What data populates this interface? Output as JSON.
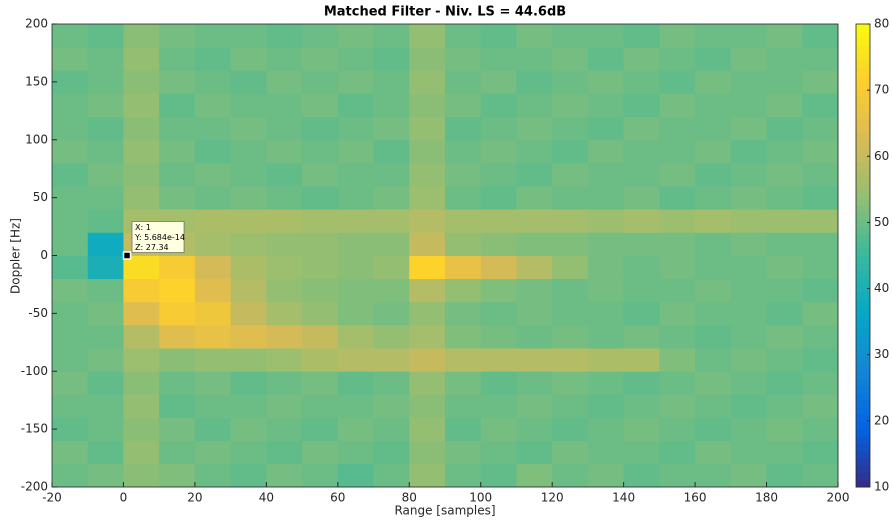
{
  "chart_data": {
    "type": "heatmap",
    "title": "Matched Filter - Niv. LS = 44.6dB",
    "x_label": "Range [samples]",
    "y_label": "Doppler [Hz]",
    "xlim": [
      -20,
      200
    ],
    "ylim": [
      -200,
      200
    ],
    "xticks": [
      -20,
      0,
      20,
      40,
      60,
      80,
      100,
      120,
      140,
      160,
      180,
      200
    ],
    "yticks": [
      -200,
      -150,
      -100,
      -50,
      0,
      50,
      100,
      150,
      200
    ],
    "clim": [
      10,
      80
    ],
    "cticks": [
      10,
      20,
      30,
      40,
      50,
      60,
      70,
      80
    ],
    "colormap": [
      "#352a87",
      "#0363e1",
      "#1485d4",
      "#06a7c6",
      "#38b99e",
      "#92bf73",
      "#d9ba56",
      "#fcce2e",
      "#f9fb0e"
    ],
    "xbins": [
      -20,
      -10,
      0,
      10,
      20,
      30,
      40,
      50,
      60,
      70,
      80,
      90,
      100,
      110,
      120,
      130,
      140,
      150,
      160,
      170,
      180,
      190,
      200
    ],
    "ybins": [
      -200,
      -180,
      -160,
      -140,
      -120,
      -100,
      -80,
      -60,
      -40,
      -20,
      0,
      20,
      40,
      60,
      80,
      100,
      120,
      140,
      160,
      180,
      200
    ],
    "z": [
      [
        50,
        51,
        53,
        52,
        50,
        49,
        51,
        50,
        48,
        50,
        54,
        50,
        49,
        52,
        50,
        51,
        49,
        50,
        50,
        51,
        49,
        50
      ],
      [
        51,
        49,
        54,
        50,
        51,
        50,
        49,
        51,
        50,
        49,
        53,
        51,
        50,
        49,
        51,
        50,
        50,
        49,
        51,
        50,
        50,
        49
      ],
      [
        49,
        50,
        53,
        51,
        49,
        51,
        50,
        49,
        51,
        50,
        54,
        49,
        51,
        50,
        49,
        50,
        51,
        50,
        49,
        50,
        51,
        50
      ],
      [
        50,
        50,
        54,
        49,
        50,
        50,
        51,
        50,
        50,
        51,
        53,
        50,
        50,
        51,
        50,
        49,
        50,
        51,
        50,
        49,
        50,
        51
      ],
      [
        51,
        49,
        53,
        50,
        51,
        49,
        50,
        51,
        49,
        50,
        54,
        51,
        49,
        50,
        51,
        50,
        49,
        50,
        51,
        50,
        49,
        50
      ],
      [
        50,
        51,
        55,
        53,
        54,
        54,
        55,
        57,
        58,
        58,
        60,
        58,
        58,
        58,
        58,
        57,
        57,
        52,
        50,
        51,
        50,
        49
      ],
      [
        50,
        50,
        58,
        64,
        66,
        64,
        62,
        60,
        56,
        54,
        56,
        52,
        51,
        50,
        51,
        50,
        51,
        50,
        49,
        50,
        51,
        50
      ],
      [
        50,
        51,
        64,
        70,
        68,
        60,
        56,
        54,
        52,
        51,
        54,
        51,
        50,
        51,
        50,
        50,
        49,
        51,
        50,
        50,
        49,
        51
      ],
      [
        51,
        50,
        70,
        72,
        64,
        58,
        54,
        53,
        52,
        52,
        58,
        54,
        52,
        51,
        50,
        51,
        50,
        50,
        51,
        50,
        50,
        49
      ],
      [
        48,
        40,
        74,
        70,
        62,
        57,
        55,
        54,
        53,
        54,
        72,
        66,
        62,
        58,
        54,
        51,
        50,
        51,
        50,
        50,
        51,
        50
      ],
      [
        50,
        38,
        60,
        58,
        56,
        55,
        54,
        54,
        53,
        53,
        60,
        54,
        53,
        52,
        52,
        51,
        51,
        51,
        50,
        51,
        50,
        50
      ],
      [
        50,
        49,
        56,
        56,
        57,
        57,
        57,
        56,
        56,
        56,
        58,
        56,
        56,
        56,
        56,
        55,
        56,
        55,
        56,
        55,
        55,
        55
      ],
      [
        50,
        50,
        54,
        51,
        50,
        51,
        50,
        49,
        50,
        51,
        55,
        50,
        49,
        51,
        50,
        50,
        51,
        49,
        50,
        51,
        50,
        49
      ],
      [
        49,
        51,
        53,
        50,
        51,
        50,
        49,
        51,
        50,
        50,
        54,
        51,
        50,
        49,
        51,
        50,
        50,
        51,
        49,
        50,
        51,
        50
      ],
      [
        51,
        50,
        54,
        51,
        49,
        50,
        51,
        50,
        51,
        49,
        53,
        50,
        51,
        50,
        49,
        51,
        50,
        50,
        51,
        49,
        50,
        51
      ],
      [
        50,
        49,
        53,
        50,
        50,
        51,
        50,
        49,
        50,
        51,
        54,
        49,
        50,
        51,
        50,
        49,
        51,
        50,
        50,
        51,
        49,
        50
      ],
      [
        50,
        51,
        54,
        49,
        51,
        50,
        50,
        51,
        49,
        50,
        53,
        51,
        49,
        50,
        51,
        50,
        49,
        51,
        50,
        50,
        51,
        49
      ],
      [
        49,
        50,
        53,
        51,
        50,
        49,
        51,
        50,
        51,
        50,
        54,
        50,
        51,
        49,
        50,
        51,
        50,
        49,
        51,
        50,
        50,
        51
      ],
      [
        51,
        50,
        54,
        50,
        49,
        51,
        50,
        51,
        50,
        49,
        53,
        51,
        50,
        50,
        51,
        49,
        51,
        50,
        49,
        51,
        50,
        50
      ],
      [
        50,
        49,
        53,
        51,
        50,
        50,
        49,
        50,
        51,
        50,
        54,
        50,
        49,
        51,
        50,
        50,
        49,
        51,
        50,
        50,
        51,
        49
      ]
    ],
    "datatip": {
      "x": 1,
      "y": 5.684e-14,
      "z": 27.34,
      "labels": [
        "X: 1",
        "Y: 5.684e-14",
        "Z: 27.34"
      ]
    }
  }
}
